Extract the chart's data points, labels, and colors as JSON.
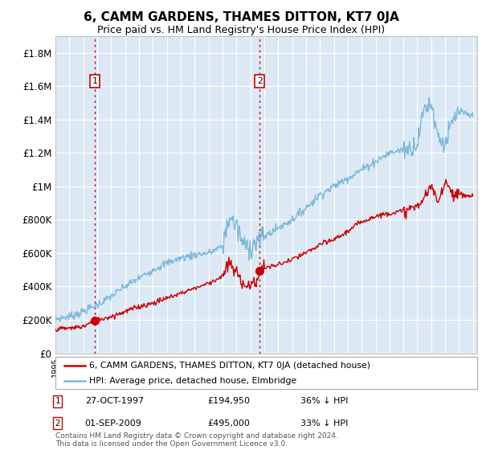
{
  "title": "6, CAMM GARDENS, THAMES DITTON, KT7 0JA",
  "subtitle": "Price paid vs. HM Land Registry's House Price Index (HPI)",
  "title_fontsize": 11,
  "subtitle_fontsize": 9,
  "background_color": "#ffffff",
  "plot_bg_color": "#dce9f5",
  "grid_color": "#ffffff",
  "ylabel_values": [
    "£0",
    "£200K",
    "£400K",
    "£600K",
    "£800K",
    "£1M",
    "£1.2M",
    "£1.4M",
    "£1.6M",
    "£1.8M"
  ],
  "ylim": [
    0,
    1900000
  ],
  "yticks": [
    0,
    200000,
    400000,
    600000,
    800000,
    1000000,
    1200000,
    1400000,
    1600000,
    1800000
  ],
  "sale1": {
    "date_idx": 1997.82,
    "price": 194950,
    "label": "1",
    "pct": "36%",
    "date_str": "27-OCT-1997"
  },
  "sale2": {
    "date_idx": 2009.67,
    "price": 495000,
    "label": "2",
    "pct": "33%",
    "date_str": "01-SEP-2009"
  },
  "hpi_color": "#7ab8d9",
  "price_color": "#cc0000",
  "sale_marker_color": "#cc0000",
  "legend_label_price": "6, CAMM GARDENS, THAMES DITTON, KT7 0JA (detached house)",
  "legend_label_hpi": "HPI: Average price, detached house, Elmbridge",
  "footer": "Contains HM Land Registry data © Crown copyright and database right 2024.\nThis data is licensed under the Open Government Licence v3.0.",
  "hpi_keypoints_x": [
    1995,
    1996,
    1997,
    1998,
    1999,
    2000,
    2001,
    2002,
    2003,
    2004,
    2005,
    2006,
    2007,
    2007.5,
    2008,
    2008.5,
    2009,
    2009.5,
    2010,
    2011,
    2012,
    2013,
    2014,
    2015,
    2016,
    2017,
    2018,
    2019,
    2020,
    2020.5,
    2021,
    2021.5,
    2022,
    2022.5,
    2023,
    2023.5,
    2024,
    2024.5,
    2025
  ],
  "hpi_keypoints_y": [
    205000,
    220000,
    250000,
    290000,
    340000,
    400000,
    450000,
    500000,
    540000,
    570000,
    590000,
    600000,
    640000,
    820000,
    760000,
    650000,
    640000,
    670000,
    700000,
    750000,
    800000,
    870000,
    950000,
    1000000,
    1050000,
    1100000,
    1150000,
    1200000,
    1220000,
    1230000,
    1260000,
    1470000,
    1500000,
    1300000,
    1250000,
    1380000,
    1450000,
    1430000,
    1420000
  ],
  "price_keypoints_x": [
    1995,
    1996,
    1997,
    1997.82,
    1998,
    1999,
    2000,
    2001,
    2002,
    2003,
    2004,
    2005,
    2006,
    2007,
    2007.5,
    2008,
    2008.5,
    2009,
    2009.5,
    2009.67,
    2010,
    2011,
    2012,
    2013,
    2014,
    2015,
    2016,
    2017,
    2018,
    2019,
    2020,
    2021,
    2021.5,
    2022,
    2022.5,
    2023,
    2023.5,
    2024,
    2025
  ],
  "price_keypoints_y": [
    145000,
    150000,
    160000,
    194950,
    200000,
    220000,
    250000,
    280000,
    300000,
    330000,
    360000,
    390000,
    420000,
    460000,
    540000,
    480000,
    420000,
    400000,
    440000,
    495000,
    510000,
    530000,
    560000,
    600000,
    650000,
    680000,
    730000,
    790000,
    820000,
    840000,
    850000,
    880000,
    930000,
    1000000,
    900000,
    1040000,
    960000,
    950000,
    940000
  ]
}
